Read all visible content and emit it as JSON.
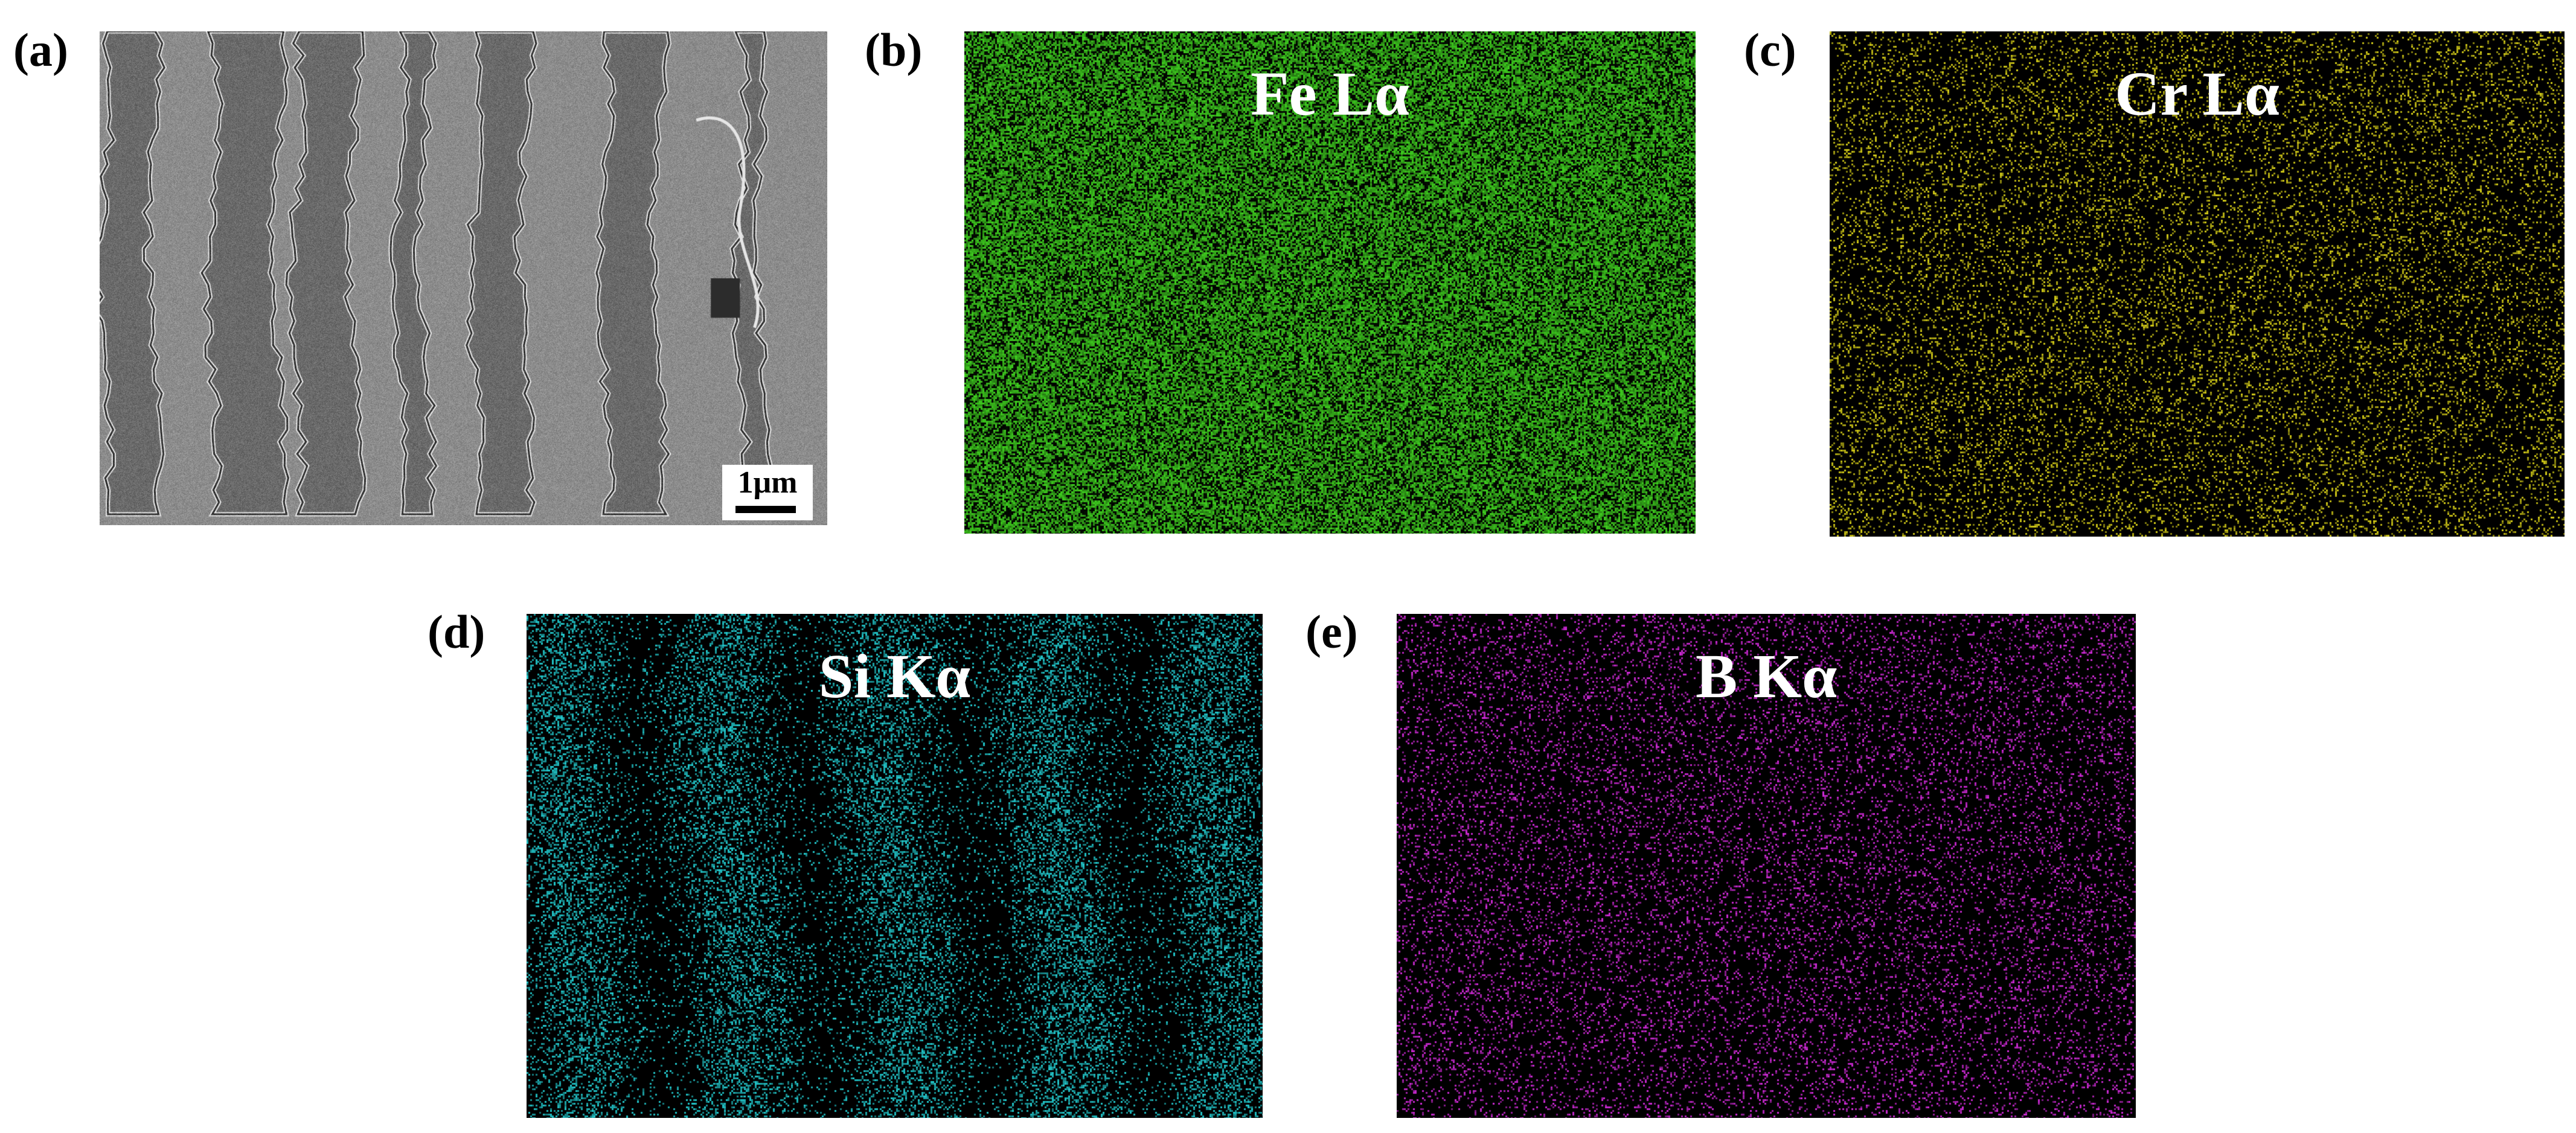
{
  "panels": {
    "a": {
      "letter": "(a)",
      "scale_label": "1μm"
    },
    "b": {
      "letter": "(b)",
      "element_label": "Fe Lα",
      "color": "#3fcf1f"
    },
    "c": {
      "letter": "(c)",
      "element_label": "Cr Lα",
      "color": "#d4cc18"
    },
    "d": {
      "letter": "(d)",
      "element_label": "Si Kα",
      "color": "#22c8cc"
    },
    "e": {
      "letter": "(e)",
      "element_label": "B Kα",
      "color": "#d02ad8"
    }
  }
}
